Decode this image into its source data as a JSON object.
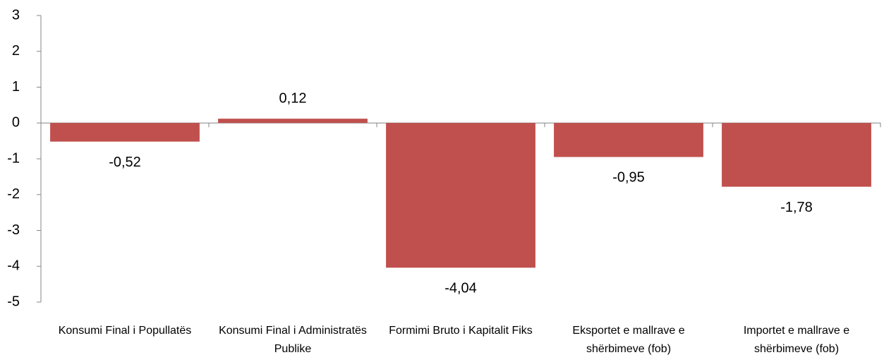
{
  "chart_data": {
    "type": "bar",
    "categories": [
      "Konsumi Final i Popullatës",
      "Konsumi Final i Administratës Publike",
      "Formimi Bruto i Kapitalit Fiks",
      "Eksportet e mallrave e shërbimeve (fob)",
      "Importet e mallrave e shërbimeve (fob)"
    ],
    "values": [
      -0.52,
      0.12,
      -4.04,
      -0.95,
      -1.78
    ],
    "value_labels": [
      "-0,52",
      "0,12",
      "-4,04",
      "-0,95",
      "-1,78"
    ],
    "color": "#c0504d",
    "ylim": [
      -5,
      3
    ],
    "yticks": [
      3,
      2,
      1,
      0,
      -1,
      -2,
      -3,
      -4,
      -5
    ],
    "grid": false
  }
}
